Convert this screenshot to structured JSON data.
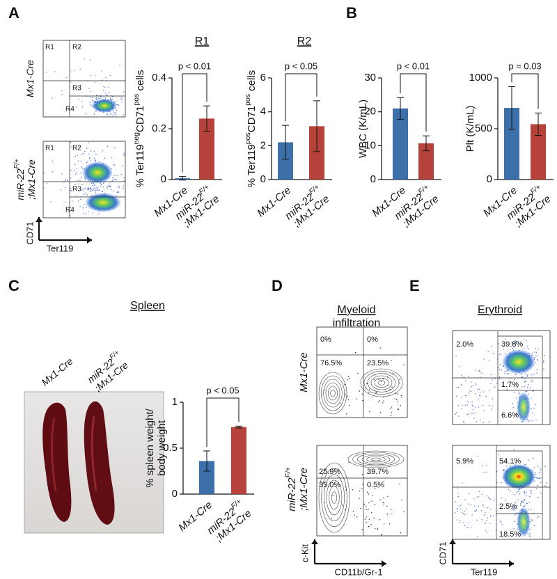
{
  "panel_labels": [
    "A",
    "B",
    "C",
    "D",
    "E"
  ],
  "panel_a_flow": {
    "rows": [
      {
        "label": [
          [
            "Mx1-Cre"
          ]
        ]
      },
      {
        "label": [
          [
            "miR-22",
            "F/+"
          ],
          [
            ";Mx1-Cre"
          ]
        ]
      }
    ],
    "gates": [
      "R1",
      "R2",
      "R3",
      "R4"
    ],
    "x_axis": "Ter119",
    "y_axis": "CD71"
  },
  "panel_c": {
    "title": "Spleen",
    "photo_labels": [
      [
        [
          "Mx1-Cre"
        ]
      ],
      [
        [
          "miR-22",
          "F/+"
        ],
        [
          ";Mx1-Cre"
        ]
      ]
    ]
  },
  "panel_d": {
    "title": [
      "Myeloid",
      "infiltration"
    ],
    "rows": [
      {
        "label": [
          [
            "Mx1-Cre"
          ]
        ],
        "quadrants": [
          "0%",
          "0%",
          "76.5%",
          "23.5%"
        ]
      },
      {
        "label": [
          [
            "miR-22",
            "F/+"
          ],
          [
            ";Mx1-Cre"
          ]
        ],
        "quadrants": [
          "25.9%",
          "39.7%",
          "35.0%",
          "0.5%"
        ]
      }
    ],
    "x_axis": "CD11b/Gr-1",
    "y_axis": "c-Kit"
  },
  "panel_e": {
    "title": "Erythroid",
    "rows": [
      {
        "quadrants": [
          "2.0%",
          "39.8%",
          "1.7%",
          "6.6%"
        ]
      },
      {
        "quadrants": [
          "5.9%",
          "54.1%",
          "2.5%",
          "18.5%"
        ]
      }
    ],
    "x_axis": "Ter119",
    "y_axis": "CD71"
  },
  "chart_data": [
    {
      "type": "bar",
      "title": "R1",
      "ylabel": [
        [
          "% Ter119",
          "neg",
          "CD71",
          "pos",
          " cells"
        ]
      ],
      "categories": [
        [
          [
            "Mx1-Cre"
          ]
        ],
        [
          [
            "miR-22",
            "F/+"
          ],
          [
            ";Mx1-Cre"
          ]
        ]
      ],
      "values": [
        0.005,
        0.24
      ],
      "errors": [
        0.007,
        0.05
      ],
      "colors": [
        "#3d6fa8",
        "#b6433b"
      ],
      "ylim": [
        0,
        0.4
      ],
      "yticks": [
        0,
        0.2,
        0.4
      ],
      "annotation": "p < 0.01"
    },
    {
      "type": "bar",
      "title": "R2",
      "ylabel": [
        [
          "% Ter119",
          "pos",
          "CD71",
          "pos",
          " cells"
        ]
      ],
      "categories": [
        [
          [
            "Mx1-Cre"
          ]
        ],
        [
          [
            "miR-22",
            "F/+"
          ],
          [
            ";Mx1-Cre"
          ]
        ]
      ],
      "values": [
        2.2,
        3.15
      ],
      "errors": [
        1.0,
        1.5
      ],
      "colors": [
        "#3d6fa8",
        "#b6433b"
      ],
      "ylim": [
        0,
        6
      ],
      "yticks": [
        0,
        2,
        4,
        6
      ],
      "annotation": "p < 0.05"
    },
    {
      "type": "bar",
      "ylabel": [
        [
          "WBC (K/mL)"
        ]
      ],
      "categories": [
        [
          [
            "Mx1-Cre"
          ]
        ],
        [
          [
            "miR-22",
            "F/+"
          ],
          [
            ";Mx1-Cre"
          ]
        ]
      ],
      "values": [
        21,
        10.7
      ],
      "errors": [
        3.2,
        2.2
      ],
      "colors": [
        "#3d6fa8",
        "#b6433b"
      ],
      "ylim": [
        0,
        30
      ],
      "yticks": [
        0,
        10,
        20,
        30
      ],
      "annotation": "p < 0.01"
    },
    {
      "type": "bar",
      "ylabel": [
        [
          "Plt (K/mL)"
        ]
      ],
      "categories": [
        [
          [
            "Mx1-Cre"
          ]
        ],
        [
          [
            "miR-22",
            "F/+"
          ],
          [
            ";Mx1-Cre"
          ]
        ]
      ],
      "values": [
        705,
        545
      ],
      "errors": [
        210,
        110
      ],
      "colors": [
        "#3d6fa8",
        "#b6433b"
      ],
      "ylim": [
        0,
        1000
      ],
      "yticks": [
        0,
        500,
        1000
      ],
      "annotation": "p = 0.03"
    },
    {
      "type": "bar",
      "ylabel": [
        [
          "% spleen weight/"
        ],
        [
          "body weight"
        ]
      ],
      "categories": [
        [
          [
            "Mx1-Cre"
          ]
        ],
        [
          [
            "miR-22",
            "F/+"
          ],
          [
            ";Mx1-Cre"
          ]
        ]
      ],
      "values": [
        0.36,
        0.73
      ],
      "errors": [
        0.11,
        0.01
      ],
      "colors": [
        "#3d6fa8",
        "#b6433b"
      ],
      "ylim": [
        0,
        1
      ],
      "yticks": [
        0,
        0.5,
        1
      ],
      "annotation": "p < 0.05"
    }
  ]
}
